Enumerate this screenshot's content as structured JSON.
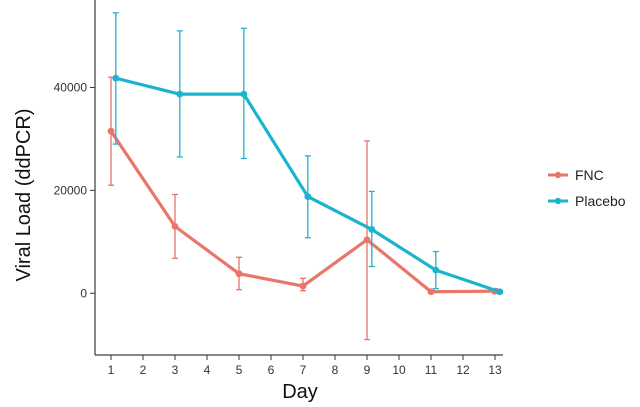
{
  "chart_data": {
    "type": "line",
    "title": "",
    "xlabel": "Day",
    "ylabel": "Viral Load (ddPCR)",
    "xlim": [
      0.5,
      13.25
    ],
    "ylim": [
      -12000,
      57000
    ],
    "x_ticks": [
      1,
      2,
      3,
      4,
      5,
      6,
      7,
      8,
      9,
      10,
      11,
      12,
      13
    ],
    "y_ticks": [
      0,
      20000,
      40000
    ],
    "grid": false,
    "legend_position": "right",
    "series": [
      {
        "name": "FNC",
        "color": "#E8766A",
        "x": [
          1,
          3,
          5,
          7,
          9,
          11,
          13
        ],
        "y": [
          31500,
          13000,
          3800,
          1400,
          10400,
          300,
          400
        ],
        "err_low": [
          21000,
          6800,
          700,
          500,
          -9000,
          0,
          0
        ],
        "err_high": [
          42000,
          19200,
          7000,
          2900,
          29600,
          600,
          900
        ]
      },
      {
        "name": "Placebo",
        "color": "#1AB5CC",
        "x": [
          1.15,
          3.15,
          5.15,
          7.15,
          9.15,
          11.15,
          13.15
        ],
        "y": [
          41800,
          38700,
          38700,
          18800,
          12400,
          4500,
          300
        ],
        "err_low": [
          29000,
          26500,
          26200,
          10800,
          5200,
          900,
          0
        ],
        "err_high": [
          54500,
          51000,
          51500,
          26700,
          19800,
          8100,
          600
        ]
      }
    ]
  }
}
